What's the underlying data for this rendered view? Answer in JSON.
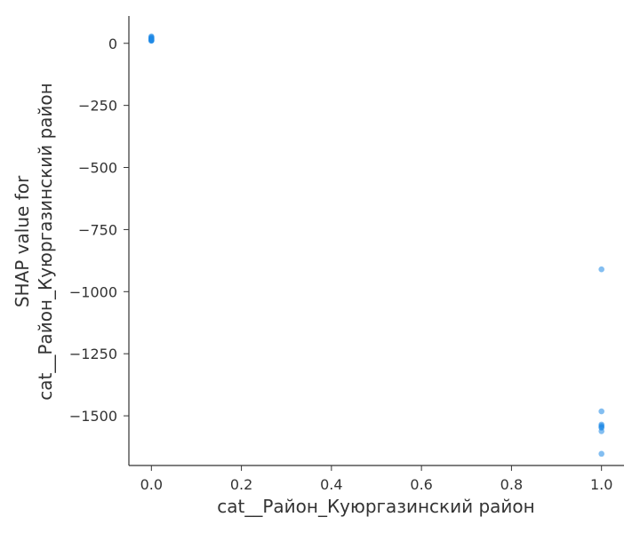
{
  "chart_data": {
    "type": "scatter",
    "xlabel": "cat__Район_Куюргазинский район",
    "ylabel_lines": [
      "SHAP value for",
      "cat__Район_Куюргазинский район"
    ],
    "xlim": [
      -0.05,
      1.05
    ],
    "ylim": [
      -1700,
      110
    ],
    "xticks": [
      0.0,
      0.2,
      0.4,
      0.6,
      0.8,
      1.0
    ],
    "xtick_labels": [
      "0.0",
      "0.2",
      "0.4",
      "0.6",
      "0.8",
      "1.0"
    ],
    "yticks": [
      0,
      -250,
      -500,
      -750,
      -1000,
      -1250,
      -1500
    ],
    "ytick_labels": [
      "0",
      "−250",
      "−500",
      "−750",
      "−1000",
      "−1250",
      "−1500"
    ],
    "grid": false,
    "point_color": "#1E88E5",
    "series": [
      {
        "x": [
          0,
          0,
          0,
          0,
          0,
          0,
          0,
          0,
          0,
          0,
          1,
          1,
          1,
          1,
          1,
          1,
          1,
          1
        ],
        "y": [
          28,
          25,
          22,
          20,
          18,
          15,
          14,
          12,
          11,
          10,
          -910,
          -1482,
          -1535,
          -1540,
          -1545,
          -1548,
          -1562,
          -1653
        ]
      }
    ]
  }
}
